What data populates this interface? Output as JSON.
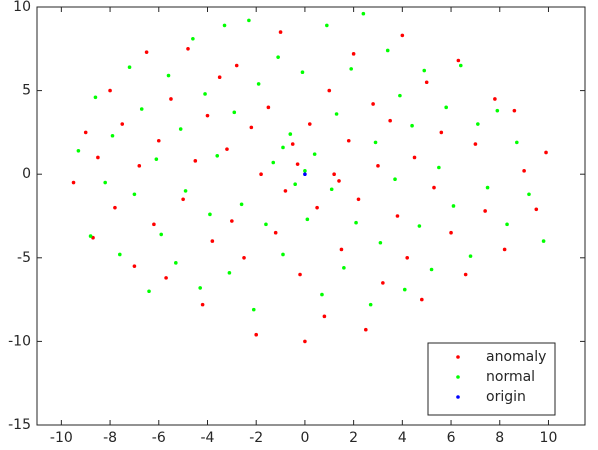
{
  "chart_data": {
    "type": "scatter",
    "xlim": [
      -11,
      11.5
    ],
    "ylim": [
      -15,
      10
    ],
    "xticks": [
      -10,
      -8,
      -6,
      -4,
      -2,
      0,
      2,
      4,
      6,
      8,
      10
    ],
    "yticks": [
      -15,
      -10,
      -5,
      0,
      5,
      10
    ],
    "grid": false,
    "legend": "southeast",
    "series": [
      {
        "name": "anomaly",
        "color": "#ff0000",
        "x": [
          -9.5,
          -9,
          -8.7,
          -8.5,
          -8,
          -7.8,
          -7.5,
          -7,
          -6.8,
          -6.5,
          -6.2,
          -6,
          -5.7,
          -5.5,
          -5,
          -4.8,
          -4.5,
          -4.2,
          -4,
          -3.8,
          -3.5,
          -3.2,
          -3,
          -2.8,
          -2.5,
          -2.2,
          -2,
          -1.8,
          -1.5,
          -1.2,
          -1,
          -0.8,
          -0.5,
          -0.2,
          0,
          0.2,
          0.5,
          0.8,
          1,
          1.2,
          1.5,
          1.8,
          2,
          2.2,
          2.5,
          2.8,
          3,
          3.2,
          3.5,
          3.8,
          4,
          4.2,
          4.5,
          4.8,
          5,
          5.3,
          5.6,
          6,
          6.3,
          6.6,
          7,
          7.4,
          7.8,
          8.2,
          8.6,
          9,
          9.5,
          9.9,
          -0.3,
          1.4
        ],
        "values": [
          -0.5,
          2.5,
          -3.8,
          1,
          5,
          -2,
          3,
          -5.5,
          0.5,
          7.3,
          -3,
          2,
          -6.2,
          4.5,
          -1.5,
          7.5,
          0.8,
          -7.8,
          3.5,
          -4,
          5.8,
          1.5,
          -2.8,
          6.5,
          -5,
          2.8,
          -9.6,
          0,
          4,
          -3.5,
          8.5,
          -1,
          1.8,
          -6,
          -10,
          3,
          -2,
          -8.5,
          5,
          0,
          -4.5,
          2,
          7.2,
          -1.5,
          -9.3,
          4.2,
          0.5,
          -6.5,
          3.2,
          -2.5,
          8.3,
          -5,
          1,
          -7.5,
          5.5,
          -0.8,
          2.5,
          -3.5,
          6.8,
          -6,
          1.8,
          -2.2,
          4.5,
          -4.5,
          3.8,
          0.2,
          -2.1,
          1.3,
          0.6,
          -0.4
        ]
      },
      {
        "name": "normal",
        "color": "#00ff00",
        "x": [
          -9.3,
          -8.8,
          -8.6,
          -8.2,
          -7.9,
          -7.6,
          -7.2,
          -7,
          -6.7,
          -6.4,
          -6.1,
          -5.9,
          -5.6,
          -5.3,
          -5.1,
          -4.9,
          -4.6,
          -4.3,
          -4.1,
          -3.9,
          -3.6,
          -3.3,
          -3.1,
          -2.9,
          -2.6,
          -2.3,
          -2.1,
          -1.9,
          -1.6,
          -1.3,
          -1.1,
          -0.9,
          -0.6,
          -0.4,
          -0.1,
          0.1,
          0.4,
          0.7,
          0.9,
          1.1,
          1.3,
          1.6,
          1.9,
          2.1,
          2.4,
          2.7,
          2.9,
          3.1,
          3.4,
          3.7,
          3.9,
          4.1,
          4.4,
          4.7,
          4.9,
          5.2,
          5.5,
          5.8,
          6.1,
          6.4,
          6.8,
          7.1,
          7.5,
          7.9,
          8.3,
          8.7,
          9.2,
          9.8,
          0,
          -0.9
        ],
        "values": [
          1.4,
          -3.7,
          4.6,
          -0.5,
          2.3,
          -4.8,
          6.4,
          -1.2,
          3.9,
          -7,
          0.9,
          -3.6,
          5.9,
          -5.3,
          2.7,
          -1,
          8.1,
          -6.8,
          4.8,
          -2.4,
          1.1,
          8.9,
          -5.9,
          3.7,
          -1.8,
          9.2,
          -8.1,
          5.4,
          -3,
          0.7,
          7,
          -4.8,
          2.4,
          -0.6,
          6.1,
          -2.7,
          1.2,
          -7.2,
          8.9,
          -0.9,
          3.6,
          -5.6,
          6.3,
          -2.9,
          9.6,
          -7.8,
          1.9,
          -4.1,
          7.4,
          -0.3,
          4.7,
          -6.9,
          2.9,
          -3.1,
          6.2,
          -5.7,
          0.4,
          4,
          -1.9,
          6.5,
          -4.9,
          3,
          -0.8,
          3.8,
          -3,
          1.9,
          -1.2,
          -4,
          0.2,
          1.6
        ]
      },
      {
        "name": "origin",
        "color": "#0000ff",
        "x": [
          0
        ],
        "values": [
          0
        ]
      }
    ]
  }
}
